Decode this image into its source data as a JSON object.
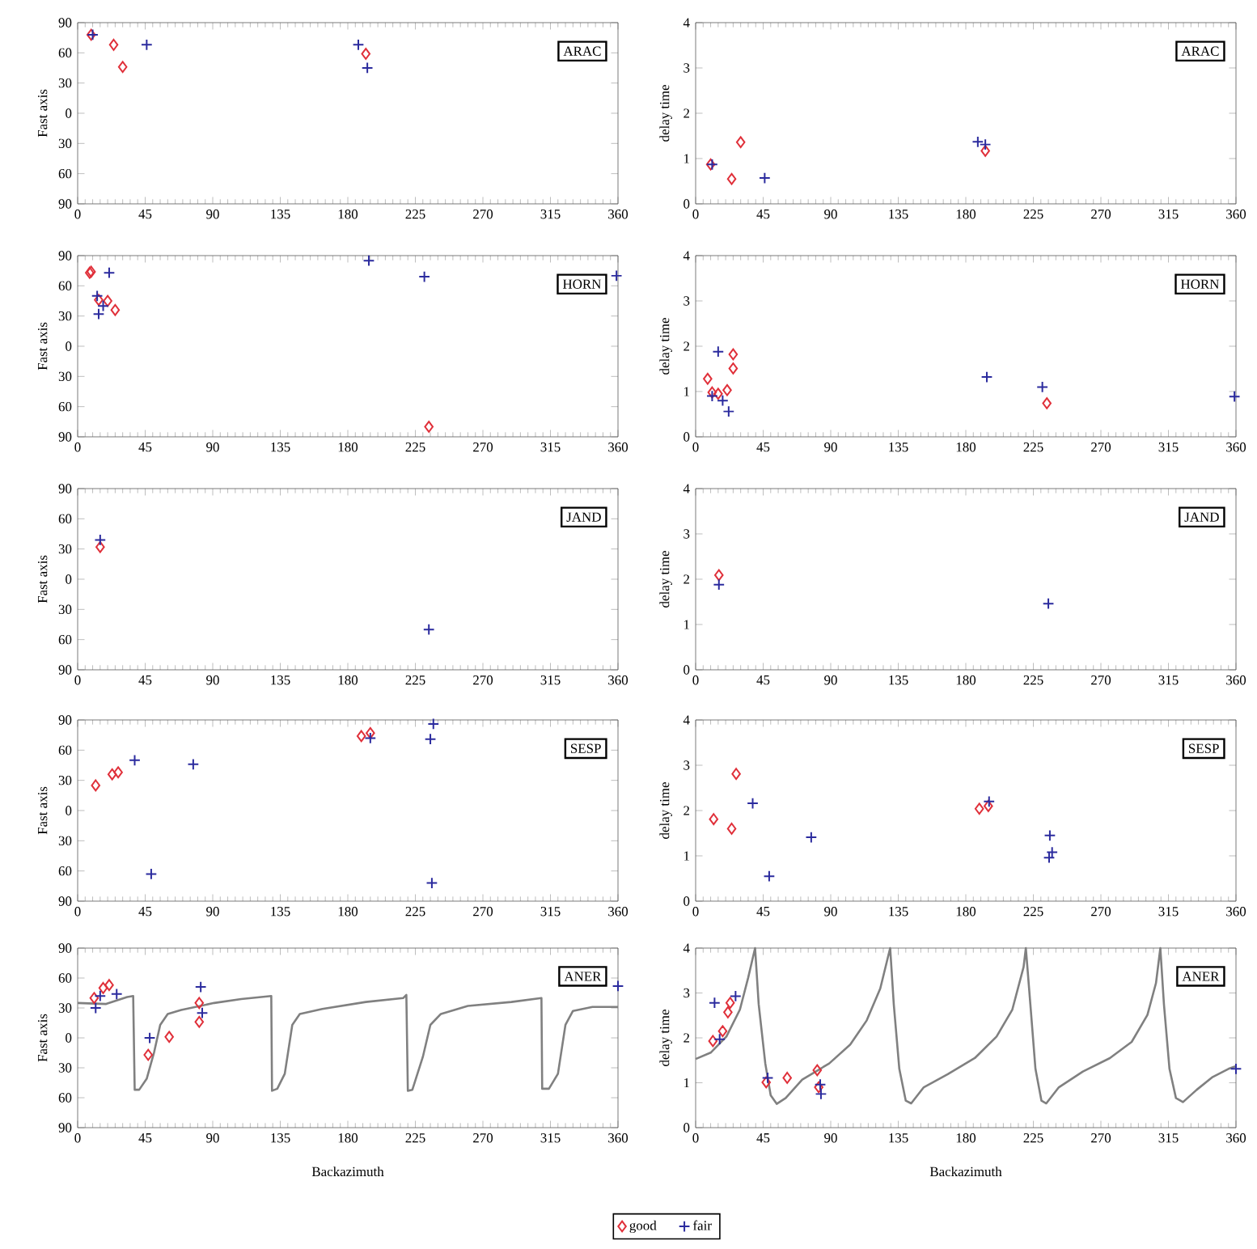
{
  "chart_data": [
    {
      "type": "scatter",
      "ylabel": "Fast axis",
      "annotations": [
        "ARAC"
      ],
      "xlim": [
        0,
        360
      ],
      "xticks": [
        0,
        45,
        90,
        135,
        180,
        225,
        270,
        315,
        360
      ],
      "ylim": [
        -90,
        90
      ],
      "yticks": [
        {
          "value": -90,
          "label": "90"
        },
        {
          "value": -60,
          "label": "60"
        },
        {
          "value": -30,
          "label": "30"
        },
        0,
        30,
        60,
        90
      ],
      "series": [
        {
          "color": "#e0303a",
          "marker": "diamond",
          "x": [
            9,
            24,
            30,
            192
          ],
          "values": [
            78,
            68,
            46,
            59
          ]
        },
        {
          "color": "#2b2b9e",
          "marker": "cross",
          "x": [
            10,
            46,
            187,
            193
          ],
          "values": [
            78,
            68,
            68,
            45
          ]
        }
      ]
    },
    {
      "type": "scatter",
      "ylabel": "delay time",
      "annotations": [
        "ARAC"
      ],
      "xlim": [
        0,
        360
      ],
      "xticks": [
        0,
        45,
        90,
        135,
        180,
        225,
        270,
        315,
        360
      ],
      "ylim": [
        0,
        4
      ],
      "yticks": [
        0,
        1,
        2,
        3,
        4
      ],
      "series": [
        {
          "color": "#e0303a",
          "marker": "diamond",
          "x": [
            10,
            24,
            30,
            193
          ],
          "values": [
            0.87,
            0.55,
            1.36,
            1.17
          ]
        },
        {
          "color": "#2b2b9e",
          "marker": "cross",
          "x": [
            11,
            46,
            188,
            193
          ],
          "values": [
            0.87,
            0.57,
            1.37,
            1.31
          ]
        }
      ]
    },
    {
      "type": "scatter",
      "ylabel": "Fast axis",
      "annotations": [
        "HORN"
      ],
      "xlim": [
        0,
        360
      ],
      "xticks": [
        0,
        45,
        90,
        135,
        180,
        225,
        270,
        315,
        360
      ],
      "ylim": [
        -90,
        90
      ],
      "yticks": [
        {
          "value": -90,
          "label": "90"
        },
        {
          "value": -60,
          "label": "60"
        },
        {
          "value": -30,
          "label": "30"
        },
        0,
        30,
        60,
        90
      ],
      "series": [
        {
          "color": "#e0303a",
          "marker": "diamond",
          "x": [
            8,
            9,
            14,
            20,
            25,
            234
          ],
          "values": [
            73,
            74,
            46,
            45,
            36,
            -80
          ]
        },
        {
          "color": "#2b2b9e",
          "marker": "cross",
          "x": [
            13,
            21,
            14,
            17,
            194,
            231,
            359
          ],
          "values": [
            50,
            73,
            32,
            40,
            85,
            69,
            70
          ]
        }
      ]
    },
    {
      "type": "scatter",
      "ylabel": "delay time",
      "annotations": [
        "HORN"
      ],
      "xlim": [
        0,
        360
      ],
      "xticks": [
        0,
        45,
        90,
        135,
        180,
        225,
        270,
        315,
        360
      ],
      "ylim": [
        0,
        4
      ],
      "yticks": [
        0,
        1,
        2,
        3,
        4
      ],
      "series": [
        {
          "color": "#e0303a",
          "marker": "diamond",
          "x": [
            8,
            11,
            15,
            21,
            25,
            25,
            234
          ],
          "values": [
            1.28,
            0.98,
            0.95,
            1.03,
            1.82,
            1.51,
            0.74
          ]
        },
        {
          "color": "#2b2b9e",
          "marker": "cross",
          "x": [
            11,
            15,
            18,
            22,
            194,
            231,
            359
          ],
          "values": [
            0.9,
            1.88,
            0.8,
            0.56,
            1.32,
            1.1,
            0.89
          ]
        }
      ]
    },
    {
      "type": "scatter",
      "ylabel": "Fast axis",
      "annotations": [
        "JAND"
      ],
      "xlim": [
        0,
        360
      ],
      "xticks": [
        0,
        45,
        90,
        135,
        180,
        225,
        270,
        315,
        360
      ],
      "ylim": [
        -90,
        90
      ],
      "yticks": [
        {
          "value": -90,
          "label": "90"
        },
        {
          "value": -60,
          "label": "60"
        },
        {
          "value": -30,
          "label": "30"
        },
        0,
        30,
        60,
        90
      ],
      "series": [
        {
          "color": "#e0303a",
          "marker": "diamond",
          "x": [
            15
          ],
          "values": [
            32
          ]
        },
        {
          "color": "#2b2b9e",
          "marker": "cross",
          "x": [
            15,
            234
          ],
          "values": [
            39,
            -50
          ]
        }
      ]
    },
    {
      "type": "scatter",
      "ylabel": "delay time",
      "annotations": [
        "JAND"
      ],
      "xlim": [
        0,
        360
      ],
      "xticks": [
        0,
        45,
        90,
        135,
        180,
        225,
        270,
        315,
        360
      ],
      "ylim": [
        0,
        4
      ],
      "yticks": [
        0,
        1,
        2,
        3,
        4
      ],
      "series": [
        {
          "color": "#e0303a",
          "marker": "diamond",
          "x": [
            15.5
          ],
          "values": [
            2.09
          ]
        },
        {
          "color": "#2b2b9e",
          "marker": "cross",
          "x": [
            15.5,
            235
          ],
          "values": [
            1.88,
            1.46
          ]
        }
      ]
    },
    {
      "type": "scatter",
      "ylabel": "Fast axis",
      "annotations": [
        "SESP"
      ],
      "xlim": [
        0,
        360
      ],
      "xticks": [
        0,
        45,
        90,
        135,
        180,
        225,
        270,
        315,
        360
      ],
      "ylim": [
        -90,
        90
      ],
      "yticks": [
        {
          "value": -90,
          "label": "90"
        },
        {
          "value": -60,
          "label": "60"
        },
        {
          "value": -30,
          "label": "30"
        },
        0,
        30,
        60,
        90
      ],
      "series": [
        {
          "color": "#e0303a",
          "marker": "diamond",
          "x": [
            12,
            23,
            27,
            189,
            195
          ],
          "values": [
            25,
            36,
            38,
            74,
            77
          ]
        },
        {
          "color": "#2b2b9e",
          "marker": "cross",
          "x": [
            38,
            77,
            49,
            195,
            235,
            237,
            236
          ],
          "values": [
            50,
            46,
            -63,
            72,
            71,
            86,
            -72
          ]
        }
      ]
    },
    {
      "type": "scatter",
      "ylabel": "delay time",
      "annotations": [
        "SESP"
      ],
      "xlim": [
        0,
        360
      ],
      "xticks": [
        0,
        45,
        90,
        135,
        180,
        225,
        270,
        315,
        360
      ],
      "ylim": [
        0,
        4
      ],
      "yticks": [
        0,
        1,
        2,
        3,
        4
      ],
      "series": [
        {
          "color": "#e0303a",
          "marker": "diamond",
          "x": [
            12,
            24,
            27,
            189,
            195
          ],
          "values": [
            1.81,
            1.6,
            2.81,
            2.04,
            2.1
          ]
        },
        {
          "color": "#2b2b9e",
          "marker": "cross",
          "x": [
            38,
            77,
            49,
            195.5,
            236,
            237.5,
            235.5
          ],
          "values": [
            2.16,
            1.41,
            0.55,
            2.2,
            1.45,
            1.08,
            0.96
          ]
        }
      ]
    },
    {
      "type": "scatter",
      "ylabel": "Fast axis",
      "xlabel": "Backazimuth",
      "annotations": [
        "ANER"
      ],
      "legend": "bottom",
      "xlim": [
        0,
        360
      ],
      "xticks": [
        0,
        45,
        90,
        135,
        180,
        225,
        270,
        315,
        360
      ],
      "ylim": [
        -90,
        90
      ],
      "yticks": [
        {
          "value": -90,
          "label": "90"
        },
        {
          "value": -60,
          "label": "60"
        },
        {
          "value": -30,
          "label": "30"
        },
        0,
        30,
        60,
        90
      ],
      "series": [
        {
          "type": "line",
          "color": "#808080",
          "x": [
            0,
            19,
            33,
            37,
            38,
            41,
            46,
            51,
            55,
            60,
            69,
            91,
            109,
            129,
            129.5,
            133,
            138,
            143,
            148,
            163,
            192,
            217,
            219,
            220,
            223,
            230,
            235,
            242,
            260,
            289,
            309,
            309.5,
            314,
            320,
            325,
            330,
            343,
            360
          ],
          "values": [
            35,
            34,
            41,
            42,
            -52,
            -52,
            -41,
            -14,
            13,
            24,
            28,
            35,
            39,
            42,
            -53,
            -51,
            -36,
            13,
            24,
            29,
            36,
            40,
            43,
            -53,
            -52,
            -19,
            13,
            24,
            32,
            36,
            40,
            -51,
            -51,
            -36,
            13,
            27,
            31,
            31
          ]
        },
        {
          "name": "good",
          "color": "#e0303a",
          "marker": "diamond",
          "x": [
            11,
            17,
            21,
            47,
            61,
            81,
            81
          ],
          "values": [
            40,
            50,
            53,
            -17,
            1,
            35,
            16
          ]
        },
        {
          "name": "fair",
          "color": "#2b2b9e",
          "marker": "cross",
          "x": [
            12,
            15,
            26,
            48,
            82,
            83,
            360
          ],
          "values": [
            30,
            42,
            44,
            0,
            51,
            25,
            52
          ]
        }
      ]
    },
    {
      "type": "scatter",
      "ylabel": "delay time",
      "xlabel": "Backazimuth",
      "annotations": [
        "ANER"
      ],
      "xlim": [
        0,
        360
      ],
      "xticks": [
        0,
        45,
        90,
        135,
        180,
        225,
        270,
        315,
        360
      ],
      "ylim": [
        0,
        4
      ],
      "yticks": [
        0,
        1,
        2,
        3,
        4
      ],
      "series": [
        {
          "type": "line",
          "color": "#808080",
          "x": [
            0,
            10,
            20.5,
            29.5,
            35,
            39.6,
            42,
            46.4,
            50,
            54,
            60,
            71,
            89,
            103,
            114,
            123,
            129.6,
            132,
            135.7,
            140,
            143.6,
            152,
            168,
            186,
            200.5,
            211,
            218.5,
            220,
            223,
            226.4,
            230.4,
            233.6,
            242,
            258,
            276,
            290.5,
            301,
            306.7,
            309.6,
            312,
            315.7,
            320,
            324.7,
            333.7,
            344.5,
            355,
            360
          ],
          "values": [
            1.53,
            1.67,
            2.03,
            2.63,
            3.34,
            4.0,
            2.75,
            1.43,
            0.72,
            0.53,
            0.66,
            1.07,
            1.43,
            1.85,
            2.39,
            3.1,
            4.0,
            2.75,
            1.31,
            0.6,
            0.54,
            0.9,
            1.19,
            1.55,
            2.03,
            2.63,
            3.58,
            4.0,
            2.75,
            1.31,
            0.6,
            0.54,
            0.9,
            1.25,
            1.55,
            1.91,
            2.51,
            3.22,
            4.0,
            2.75,
            1.31,
            0.66,
            0.57,
            0.84,
            1.13,
            1.31,
            1.37
          ]
        },
        {
          "color": "#e0303a",
          "marker": "diamond",
          "x": [
            11.5,
            18,
            21.5,
            23,
            47,
            61,
            81,
            82
          ],
          "values": [
            1.93,
            2.15,
            2.57,
            2.78,
            1.01,
            1.11,
            1.28,
            0.9
          ]
        },
        {
          "color": "#2b2b9e",
          "marker": "cross",
          "x": [
            12.6,
            16,
            26.6,
            48,
            83,
            83.5,
            360
          ],
          "values": [
            2.78,
            1.97,
            2.93,
            1.11,
            0.96,
            0.75,
            1.31
          ]
        }
      ]
    }
  ]
}
